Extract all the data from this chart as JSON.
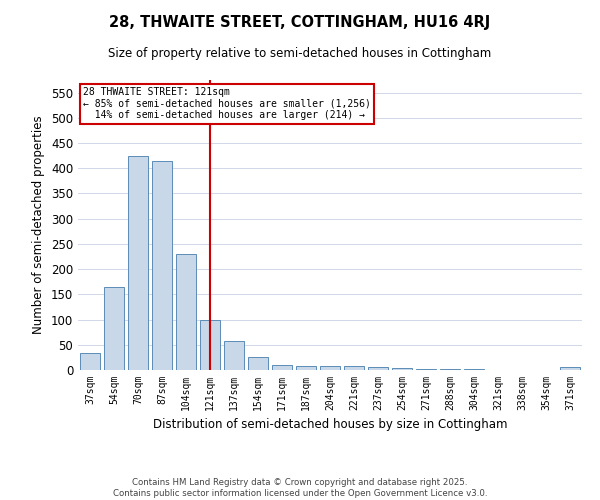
{
  "title": "28, THWAITE STREET, COTTINGHAM, HU16 4RJ",
  "subtitle": "Size of property relative to semi-detached houses in Cottingham",
  "xlabel": "Distribution of semi-detached houses by size in Cottingham",
  "ylabel": "Number of semi-detached properties",
  "categories": [
    "37sqm",
    "54sqm",
    "70sqm",
    "87sqm",
    "104sqm",
    "121sqm",
    "137sqm",
    "154sqm",
    "171sqm",
    "187sqm",
    "204sqm",
    "221sqm",
    "237sqm",
    "254sqm",
    "271sqm",
    "288sqm",
    "304sqm",
    "321sqm",
    "338sqm",
    "354sqm",
    "371sqm"
  ],
  "values": [
    33,
    165,
    425,
    415,
    230,
    100,
    57,
    25,
    10,
    8,
    8,
    8,
    5,
    3,
    2,
    2,
    2,
    0,
    0,
    0,
    5
  ],
  "bar_color": "#c8d8e8",
  "bar_edge_color": "#5b8db8",
  "highlight_index": 5,
  "highlight_line_color": "#cc0000",
  "ylim": [
    0,
    575
  ],
  "yticks": [
    0,
    50,
    100,
    150,
    200,
    250,
    300,
    350,
    400,
    450,
    500,
    550
  ],
  "annotation_line1": "28 THWAITE STREET: 121sqm",
  "annotation_line2": "← 85% of semi-detached houses are smaller (1,256)",
  "annotation_line3": "  14% of semi-detached houses are larger (214) →",
  "annotation_box_color": "#ffffff",
  "annotation_box_edge": "#cc0000",
  "footer": "Contains HM Land Registry data © Crown copyright and database right 2025.\nContains public sector information licensed under the Open Government Licence v3.0.",
  "background_color": "#ffffff",
  "grid_color": "#d0d8e8"
}
